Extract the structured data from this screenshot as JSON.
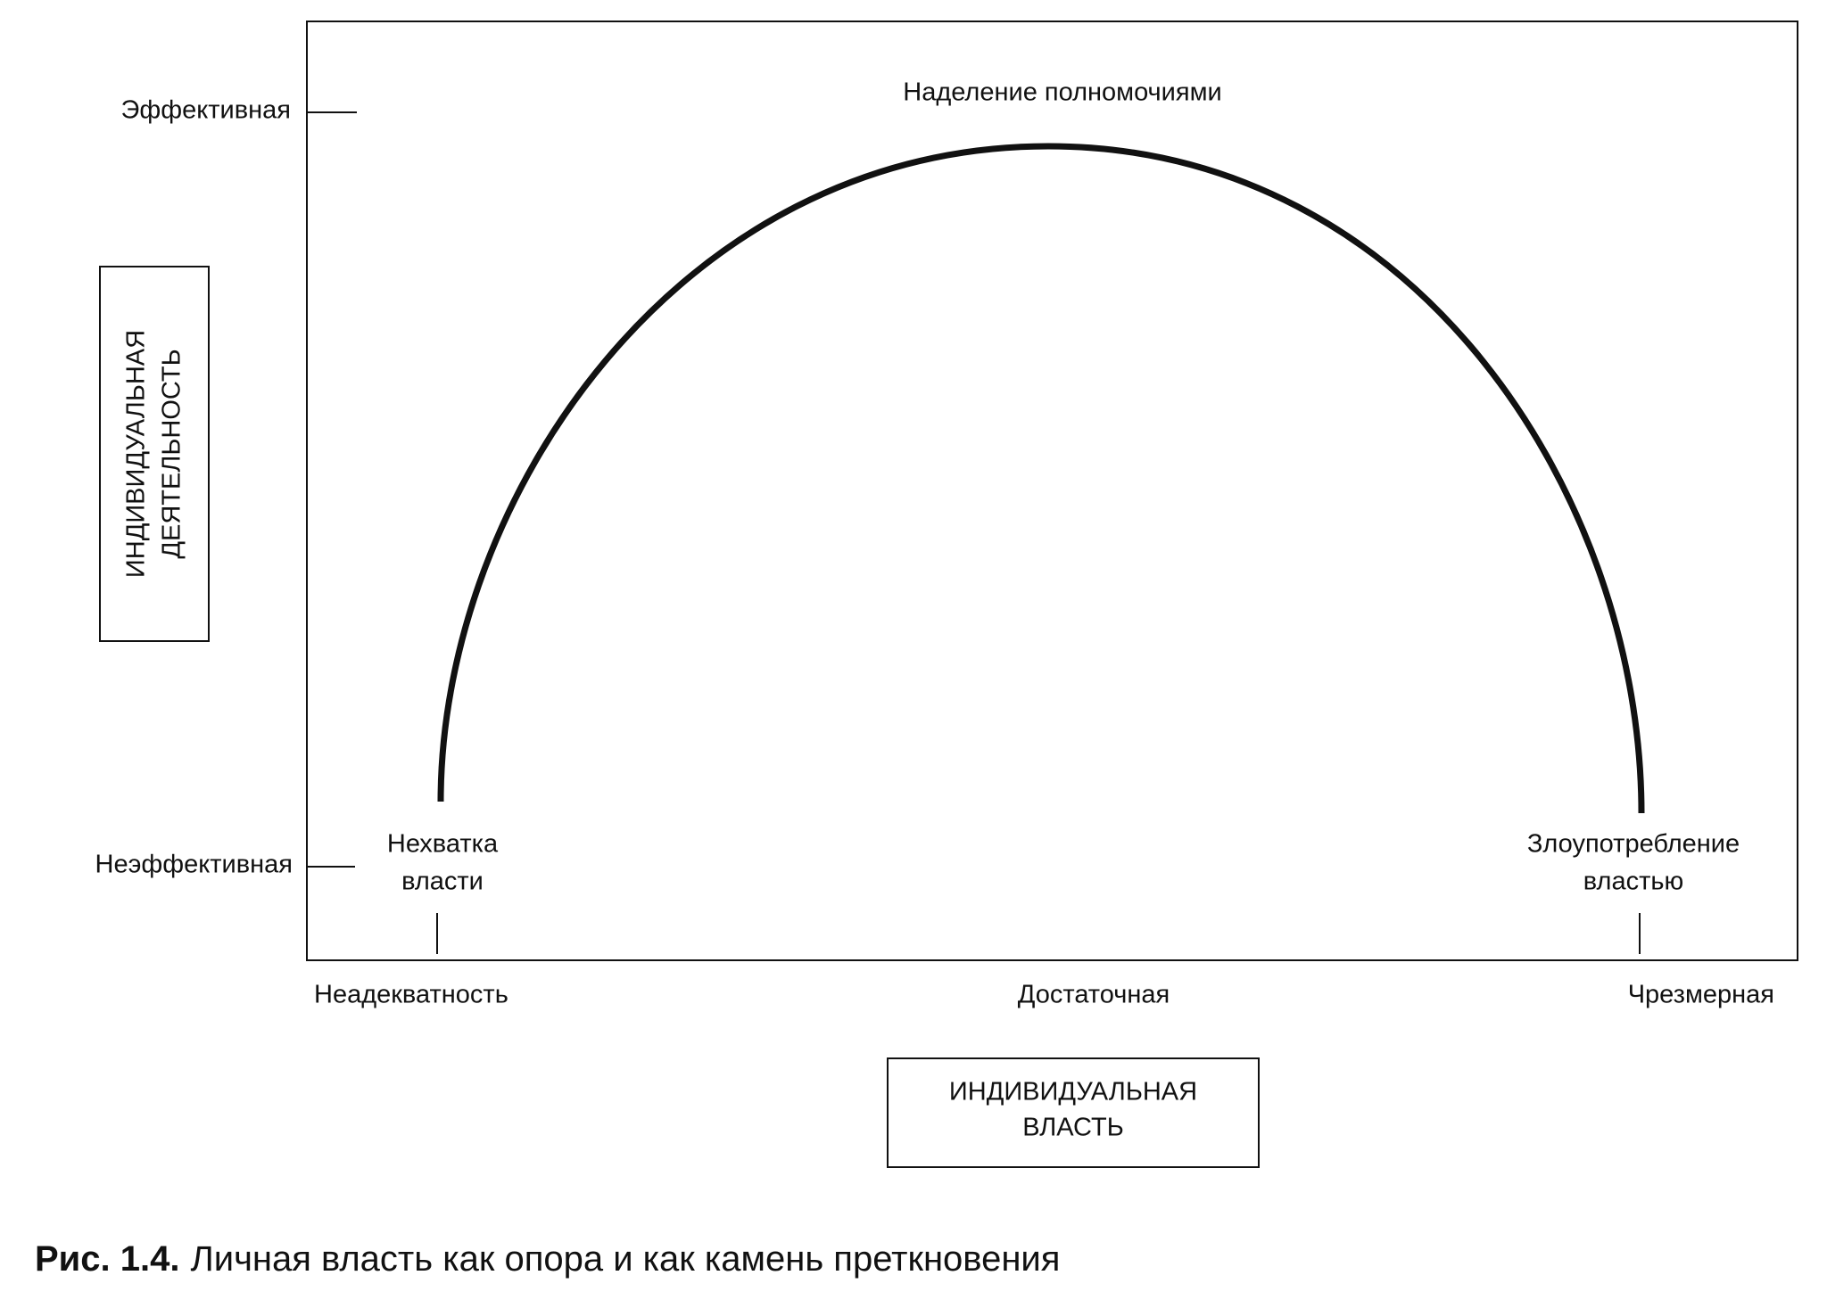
{
  "y_axis": {
    "title_lines": [
      "ИНДИВИДУАЛЬНАЯ",
      "ДЕЯТЕЛЬНОСТЬ"
    ],
    "top_label": "Эффективная",
    "bottom_label": "Неэффективная"
  },
  "x_axis": {
    "title_lines": [
      "ИНДИВИДУАЛЬНАЯ",
      "ВЛАСТЬ"
    ],
    "left_label": "Неадекватность",
    "middle_label": "Достаточная",
    "right_label": "Чрезмерная"
  },
  "curve": {
    "peak_label": "Наделение полномочиями",
    "left_label_lines": [
      "Нехватка",
      "власти"
    ],
    "right_label_lines": [
      "Злоупотребление",
      "властью"
    ]
  },
  "caption": {
    "number": "Рис. 1.4.",
    "text": "Личная власть как опора и как камень преткновения"
  }
}
